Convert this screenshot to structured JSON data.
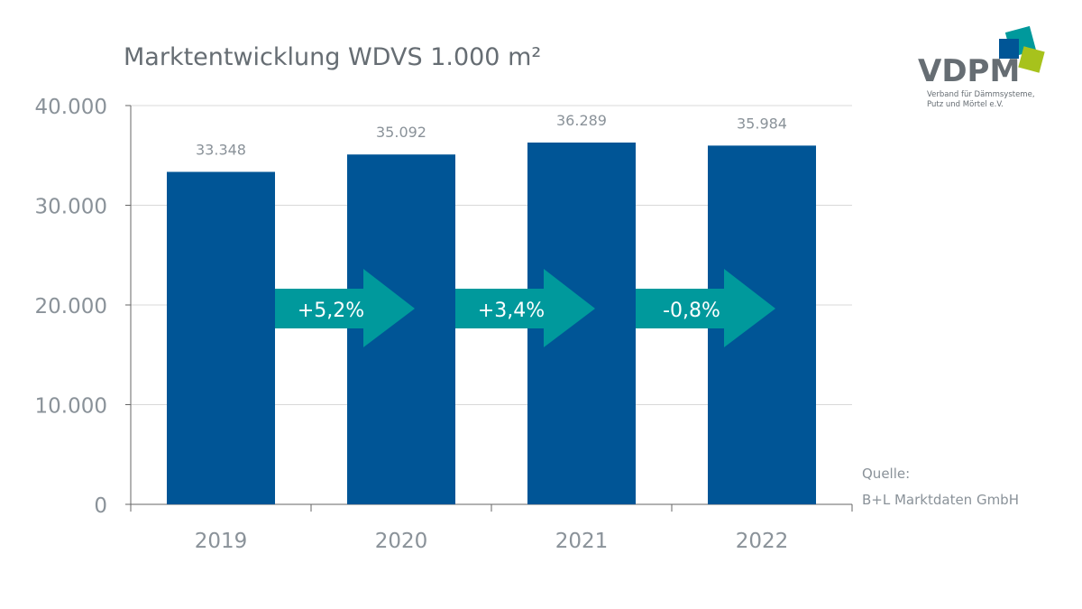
{
  "chart_data": {
    "type": "bar",
    "title": "Marktentwicklung WDVS 1.000 m²",
    "categories": [
      "2019",
      "2020",
      "2021",
      "2022"
    ],
    "values": [
      33348,
      35092,
      36289,
      35984
    ],
    "value_labels": [
      "33.348",
      "35.092",
      "36.289",
      "35.984"
    ],
    "ylim": [
      0,
      40000
    ],
    "yticks": [
      0,
      10000,
      20000,
      30000,
      40000
    ],
    "ytick_labels": [
      "0",
      "10.000",
      "20.000",
      "30.000",
      "40.000"
    ],
    "grid": true,
    "changes": [
      "+5,2%",
      "+3,4%",
      "-0,8%"
    ],
    "colors": {
      "bar": "#005596",
      "arrow": "#00999c",
      "grid": "#d9d9d9",
      "text": "#8a9299"
    }
  },
  "source": {
    "label": "Quelle:",
    "text": "B+L Marktdaten GmbH"
  },
  "logo": {
    "name": "VDPM",
    "subtitle_1": "Verband für Dämmsysteme,",
    "subtitle_2": "Putz und Mörtel e.V."
  }
}
